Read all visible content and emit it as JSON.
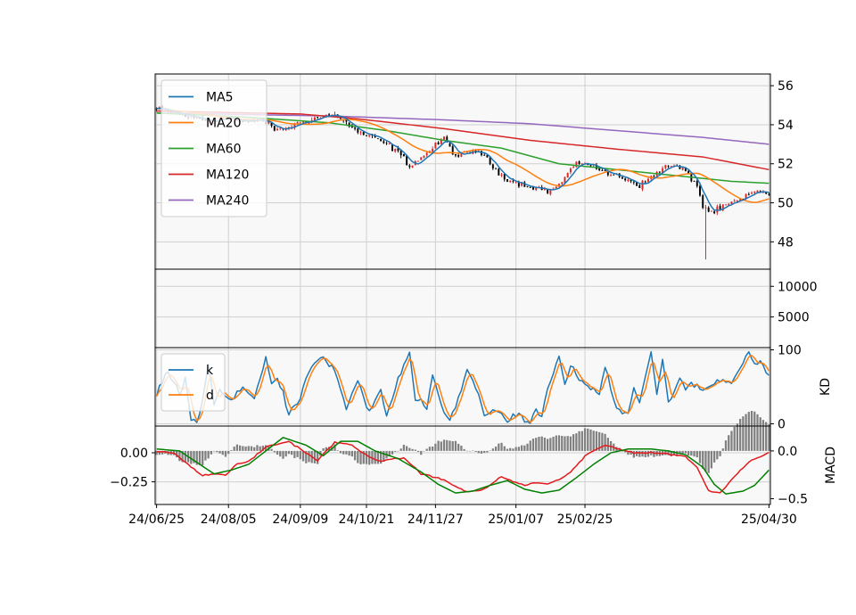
{
  "chart_data": {
    "type": "candlestick",
    "x_tick_labels": [
      "24/06/25",
      "24/08/05",
      "24/09/09",
      "24/10/21",
      "24/11/27",
      "25/01/07",
      "25/02/25",
      "25/04/30"
    ],
    "colors": {
      "MA5": "#1f77b4",
      "MA20": "#ff7f0e",
      "MA60": "#2ca02c",
      "MA120": "#d62728",
      "MA240": "#9467bd",
      "k": "#1f77b4",
      "d": "#ff7f0e",
      "macd_fast": "#e41a1c",
      "macd_slow": "#008000",
      "histogram": "#808080",
      "up": "#d62728",
      "down": "#000000",
      "panel_bg": "#f8f8f8",
      "grid": "#d0d0d0"
    },
    "price": {
      "ylim": [
        46.6,
        56.6
      ],
      "yticks": [
        48,
        50,
        52,
        54,
        56
      ],
      "legend": [
        "MA5",
        "MA20",
        "MA60",
        "MA120",
        "MA240"
      ],
      "legend_loc": "upper-left",
      "close_anchors": [
        [
          0,
          54.8
        ],
        [
          6,
          54.6
        ],
        [
          12,
          54.4
        ],
        [
          18,
          54.2
        ],
        [
          24,
          54.4
        ],
        [
          30,
          54.1
        ],
        [
          36,
          54.3
        ],
        [
          42,
          53.7
        ],
        [
          48,
          54.0
        ],
        [
          54,
          54.3
        ],
        [
          60,
          54.5
        ],
        [
          64,
          54.4
        ],
        [
          68,
          53.8
        ],
        [
          72,
          53.5
        ],
        [
          76,
          53.3
        ],
        [
          80,
          53.0
        ],
        [
          84,
          52.6
        ],
        [
          88,
          51.9
        ],
        [
          92,
          52.3
        ],
        [
          96,
          52.8
        ],
        [
          100,
          53.3
        ],
        [
          104,
          52.4
        ],
        [
          108,
          52.5
        ],
        [
          112,
          52.7
        ],
        [
          116,
          52.0
        ],
        [
          120,
          51.4
        ],
        [
          124,
          51.1
        ],
        [
          128,
          50.9
        ],
        [
          132,
          50.8
        ],
        [
          136,
          50.6
        ],
        [
          140,
          50.9
        ],
        [
          144,
          51.7
        ],
        [
          148,
          52.1
        ],
        [
          152,
          51.9
        ],
        [
          156,
          51.5
        ],
        [
          160,
          51.4
        ],
        [
          164,
          51.2
        ],
        [
          168,
          50.9
        ],
        [
          172,
          51.3
        ],
        [
          176,
          51.8
        ],
        [
          180,
          51.9
        ],
        [
          184,
          51.6
        ],
        [
          188,
          50.9
        ],
        [
          190,
          49.8
        ],
        [
          193,
          49.5
        ],
        [
          196,
          49.7
        ],
        [
          200,
          50.0
        ],
        [
          204,
          50.2
        ],
        [
          207,
          50.5
        ],
        [
          210,
          50.6
        ],
        [
          213,
          50.5
        ]
      ],
      "wick_sigma": 0.18,
      "big_wick_low": {
        "index": 191,
        "low": 47.1
      }
    },
    "volume": {
      "yticks": [
        5000,
        10000
      ],
      "ylim": [
        0,
        12800
      ]
    },
    "kd": {
      "ylabel": "KD",
      "ylim": [
        -3,
        103
      ],
      "yticks": [
        0,
        100
      ],
      "legend": [
        "k",
        "d"
      ],
      "legend_loc": "upper-left",
      "k_anchors": [
        [
          0,
          40
        ],
        [
          4,
          70
        ],
        [
          8,
          40
        ],
        [
          10,
          62
        ],
        [
          12,
          5
        ],
        [
          14,
          2
        ],
        [
          16,
          30
        ],
        [
          18,
          82
        ],
        [
          20,
          25
        ],
        [
          22,
          45
        ],
        [
          26,
          30
        ],
        [
          30,
          50
        ],
        [
          34,
          35
        ],
        [
          38,
          90
        ],
        [
          40,
          55
        ],
        [
          42,
          60
        ],
        [
          44,
          40
        ],
        [
          46,
          12
        ],
        [
          50,
          35
        ],
        [
          54,
          80
        ],
        [
          58,
          90
        ],
        [
          62,
          70
        ],
        [
          64,
          45
        ],
        [
          66,
          20
        ],
        [
          70,
          58
        ],
        [
          74,
          15
        ],
        [
          78,
          45
        ],
        [
          80,
          10
        ],
        [
          84,
          60
        ],
        [
          88,
          100
        ],
        [
          90,
          30
        ],
        [
          92,
          35
        ],
        [
          94,
          20
        ],
        [
          96,
          68
        ],
        [
          100,
          15
        ],
        [
          102,
          5
        ],
        [
          104,
          25
        ],
        [
          106,
          45
        ],
        [
          108,
          72
        ],
        [
          112,
          40
        ],
        [
          114,
          10
        ],
        [
          118,
          20
        ],
        [
          122,
          5
        ],
        [
          126,
          15
        ],
        [
          128,
          5
        ],
        [
          130,
          2
        ],
        [
          132,
          18
        ],
        [
          134,
          10
        ],
        [
          136,
          45
        ],
        [
          140,
          90
        ],
        [
          142,
          55
        ],
        [
          144,
          80
        ],
        [
          146,
          65
        ],
        [
          150,
          50
        ],
        [
          154,
          40
        ],
        [
          156,
          78
        ],
        [
          160,
          20
        ],
        [
          164,
          15
        ],
        [
          166,
          50
        ],
        [
          168,
          30
        ],
        [
          172,
          98
        ],
        [
          174,
          40
        ],
        [
          176,
          85
        ],
        [
          178,
          30
        ],
        [
          182,
          60
        ],
        [
          184,
          45
        ],
        [
          186,
          55
        ],
        [
          190,
          45
        ],
        [
          192,
          50
        ],
        [
          196,
          60
        ],
        [
          200,
          55
        ],
        [
          204,
          85
        ],
        [
          206,
          100
        ],
        [
          208,
          80
        ],
        [
          210,
          85
        ],
        [
          213,
          65
        ]
      ]
    },
    "macd": {
      "ylabel": "MACD",
      "left_ylim": [
        -0.445,
        0.23
      ],
      "left_yticks": [
        0.0,
        -0.25
      ],
      "left_yticklabels": [
        "0.00",
        "−0.25"
      ],
      "right_ylim": [
        -0.56,
        0.26
      ],
      "right_yticks": [
        0.0,
        -0.5
      ],
      "right_yticklabels": [
        "0.0",
        "−0.5"
      ],
      "fast_anchors": [
        [
          0,
          -0.01
        ],
        [
          6,
          -0.02
        ],
        [
          10,
          -0.12
        ],
        [
          16,
          -0.26
        ],
        [
          20,
          -0.24
        ],
        [
          24,
          -0.25
        ],
        [
          28,
          -0.14
        ],
        [
          32,
          -0.11
        ],
        [
          38,
          0.04
        ],
        [
          46,
          0.1
        ],
        [
          52,
          -0.02
        ],
        [
          56,
          -0.1
        ],
        [
          62,
          0.09
        ],
        [
          68,
          0.06
        ],
        [
          72,
          -0.03
        ],
        [
          78,
          -0.11
        ],
        [
          86,
          -0.07
        ],
        [
          92,
          -0.24
        ],
        [
          98,
          -0.28
        ],
        [
          104,
          -0.37
        ],
        [
          108,
          -0.43
        ],
        [
          114,
          -0.4
        ],
        [
          120,
          -0.27
        ],
        [
          124,
          -0.32
        ],
        [
          128,
          -0.36
        ],
        [
          132,
          -0.33
        ],
        [
          136,
          -0.35
        ],
        [
          140,
          -0.3
        ],
        [
          144,
          -0.22
        ],
        [
          150,
          -0.03
        ],
        [
          156,
          0.06
        ],
        [
          160,
          0.03
        ],
        [
          166,
          -0.02
        ],
        [
          172,
          -0.02
        ],
        [
          178,
          -0.03
        ],
        [
          184,
          -0.06
        ],
        [
          188,
          -0.17
        ],
        [
          192,
          -0.42
        ],
        [
          196,
          -0.44
        ],
        [
          200,
          -0.3
        ],
        [
          206,
          -0.11
        ],
        [
          213,
          -0.02
        ]
      ],
      "slow_anchors": [
        [
          0,
          0.02
        ],
        [
          8,
          0.0
        ],
        [
          14,
          -0.12
        ],
        [
          20,
          -0.24
        ],
        [
          26,
          -0.2
        ],
        [
          32,
          -0.14
        ],
        [
          38,
          0.0
        ],
        [
          44,
          0.14
        ],
        [
          52,
          0.06
        ],
        [
          58,
          -0.05
        ],
        [
          64,
          0.1
        ],
        [
          70,
          0.1
        ],
        [
          76,
          0.0
        ],
        [
          84,
          -0.08
        ],
        [
          92,
          -0.22
        ],
        [
          98,
          -0.35
        ],
        [
          104,
          -0.44
        ],
        [
          110,
          -0.42
        ],
        [
          116,
          -0.36
        ],
        [
          122,
          -0.31
        ],
        [
          128,
          -0.4
        ],
        [
          134,
          -0.44
        ],
        [
          140,
          -0.41
        ],
        [
          146,
          -0.28
        ],
        [
          152,
          -0.14
        ],
        [
          158,
          -0.02
        ],
        [
          164,
          0.02
        ],
        [
          172,
          0.02
        ],
        [
          178,
          0.0
        ],
        [
          184,
          -0.04
        ],
        [
          190,
          -0.17
        ],
        [
          194,
          -0.35
        ],
        [
          198,
          -0.45
        ],
        [
          204,
          -0.42
        ],
        [
          208,
          -0.36
        ],
        [
          213,
          -0.2
        ]
      ]
    }
  }
}
